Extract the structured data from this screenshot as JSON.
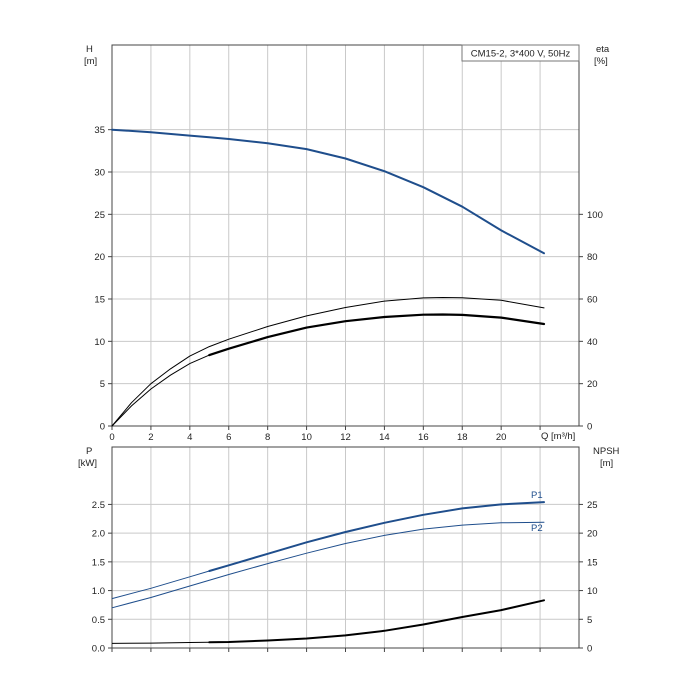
{
  "chart_data": [
    {
      "type": "line",
      "legend_box": "CM15-2, 3*400 V, 50Hz",
      "xlabel": "Q [m³/h]",
      "ylabel_left": "H",
      "ylabel_left_unit": "[m]",
      "ylabel_right": "eta",
      "ylabel_right_unit": "[%]",
      "xlim": [
        0,
        24
      ],
      "ylim_left": [
        0,
        45
      ],
      "ylim_right": [
        0,
        180
      ],
      "x_ticks": [
        0,
        2,
        4,
        6,
        8,
        10,
        12,
        14,
        16,
        18,
        20
      ],
      "x_tick_labels": [
        "0",
        "2",
        "4",
        "6",
        "8",
        "10",
        "12",
        "14",
        "16",
        "18",
        "20"
      ],
      "y_left_ticks": [
        0,
        5,
        10,
        15,
        20,
        25,
        30,
        35
      ],
      "y_left_tick_labels": [
        "0",
        "5",
        "10",
        "15",
        "20",
        "25",
        "30",
        "35"
      ],
      "y_right_ticks": [
        0,
        20,
        40,
        60,
        80,
        100
      ],
      "y_right_tick_labels": [
        "0",
        "20",
        "40",
        "60",
        "80",
        "100"
      ],
      "grid": true,
      "series": [
        {
          "axis": "left",
          "color": "#1f4e8c",
          "width": 2.0,
          "x": [
            0,
            2,
            4,
            5,
            6,
            8,
            10,
            12,
            14,
            16,
            18,
            20,
            22.2
          ],
          "y": [
            35.0,
            34.7,
            34.3,
            34.1,
            33.9,
            33.4,
            32.7,
            31.6,
            30.1,
            28.2,
            25.9,
            23.1,
            20.4
          ]
        },
        {
          "axis": "right",
          "color": "#000000",
          "width": 1.0,
          "x": [
            0,
            1,
            2,
            3,
            4,
            5,
            6,
            8,
            10,
            12,
            14,
            16,
            17,
            18,
            20,
            22.2
          ],
          "y": [
            0,
            11,
            20,
            27,
            33,
            37.5,
            41,
            47,
            52,
            56,
            59,
            60.5,
            60.7,
            60.6,
            59.4,
            55.8
          ]
        },
        {
          "axis": "right",
          "color": "#000000",
          "width": 2.2,
          "from_x": 5,
          "x": [
            0,
            1,
            2,
            3,
            4,
            5,
            6,
            8,
            10,
            12,
            14,
            16,
            17,
            18,
            20,
            22.2
          ],
          "y": [
            0,
            9.5,
            17.5,
            24,
            29.5,
            33.5,
            36.5,
            42,
            46.5,
            49.5,
            51.5,
            52.6,
            52.7,
            52.5,
            51.2,
            48.2
          ]
        }
      ]
    },
    {
      "type": "line",
      "xlim": [
        0,
        24
      ],
      "ylabel_left": "P",
      "ylabel_left_unit": "[kW]",
      "ylabel_right": "NPSH",
      "ylabel_right_unit": "[m]",
      "ylim_left": [
        0,
        3.5
      ],
      "ylim_right": [
        0,
        35
      ],
      "y_left_ticks": [
        0,
        0.5,
        1,
        1.5,
        2,
        2.5
      ],
      "y_left_tick_labels": [
        "0.0",
        "0.5",
        "1.0",
        "1.5",
        "2.0",
        "2.5"
      ],
      "y_right_ticks": [
        0,
        5,
        10,
        15,
        20,
        25
      ],
      "y_right_tick_labels": [
        "0",
        "5",
        "10",
        "15",
        "20",
        "25"
      ],
      "grid": true,
      "series": [
        {
          "name": "P1",
          "axis": "left",
          "color": "#1f4e8c",
          "width": 2.0,
          "from_x": 5,
          "x": [
            0,
            2,
            4,
            5,
            6,
            8,
            10,
            12,
            14,
            16,
            18,
            20,
            22.2
          ],
          "y": [
            0.86,
            1.04,
            1.24,
            1.34,
            1.44,
            1.64,
            1.84,
            2.02,
            2.18,
            2.32,
            2.43,
            2.5,
            2.54
          ]
        },
        {
          "name": "P2",
          "axis": "left",
          "color": "#1f4e8c",
          "width": 1.0,
          "x": [
            0,
            2,
            4,
            6,
            8,
            10,
            12,
            14,
            16,
            18,
            20,
            22.2
          ],
          "y": [
            0.7,
            0.88,
            1.08,
            1.28,
            1.47,
            1.65,
            1.82,
            1.96,
            2.07,
            2.14,
            2.18,
            2.19
          ]
        },
        {
          "axis": "right",
          "color": "#000000",
          "width": 2.0,
          "from_x": 5,
          "x": [
            0,
            2,
            4,
            5,
            6,
            8,
            10,
            12,
            14,
            16,
            18,
            20,
            22.2
          ],
          "y": [
            0.8,
            0.85,
            0.95,
            1.0,
            1.05,
            1.3,
            1.65,
            2.2,
            3.0,
            4.1,
            5.4,
            6.6,
            8.3
          ]
        }
      ]
    }
  ]
}
